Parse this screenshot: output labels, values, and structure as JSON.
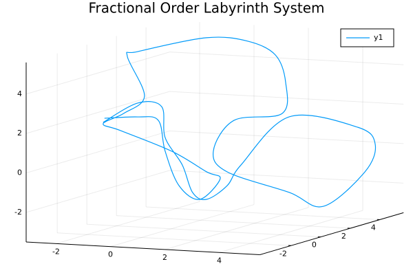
{
  "chart_data": {
    "type": "line3d",
    "title": "Fractional Order Labyrinth System",
    "series": [
      {
        "name": "y1",
        "color": "#009af9",
        "x": [
          -2.5,
          -1.23,
          -0.35,
          -0.22,
          0.41,
          0.79,
          1.3,
          2.06,
          2.57,
          2.71,
          4.69,
          5.33,
          4.95,
          3.97,
          2.71,
          0.43,
          -0.08,
          0.68,
          2.45,
          2.58,
          2.2,
          1.19,
          -0.88,
          -2.86,
          -2.7,
          -0.98,
          -1.74,
          -2.5,
          -1.86,
          0.03,
          1.3,
          1.26,
          1.05,
          0.29,
          -0.22,
          -0.47,
          -1.23,
          -2.45
        ],
        "y": [
          0,
          0,
          0,
          0,
          0,
          0,
          0,
          0,
          0,
          3,
          4,
          4,
          4,
          3,
          3,
          3,
          3,
          3,
          3,
          3,
          3,
          3,
          4,
          3,
          2,
          0,
          0,
          0,
          0,
          0,
          0,
          1,
          0,
          0,
          0,
          0,
          0,
          0
        ],
        "z": [
          1.71,
          2.78,
          2.67,
          1.11,
          -0.23,
          -1.6,
          -1.91,
          -1.16,
          -0.07,
          1.72,
          1.12,
          0.3,
          -1.12,
          -2.72,
          -2.11,
          -1.24,
          -0.23,
          1.39,
          1.87,
          3.45,
          4.82,
          5.44,
          5.24,
          4.61,
          4.6,
          3.15,
          2.22,
          1.64,
          1.34,
          0.43,
          -0.51,
          -1.09,
          -1.93,
          -1.29,
          0.42,
          1.96,
          2.08,
          1.92
        ]
      }
    ],
    "xlim": [
      -3.1,
      5.5
    ],
    "ylim": [
      -4.1,
      5.6
    ],
    "zlim": [
      -3.5,
      5.6
    ],
    "xticks": [
      -2,
      0,
      2,
      4
    ],
    "yticks": [
      -2,
      0,
      2,
      4
    ],
    "zticks": [
      -2,
      0,
      2,
      4
    ],
    "grid": true,
    "legend": "top-right"
  }
}
